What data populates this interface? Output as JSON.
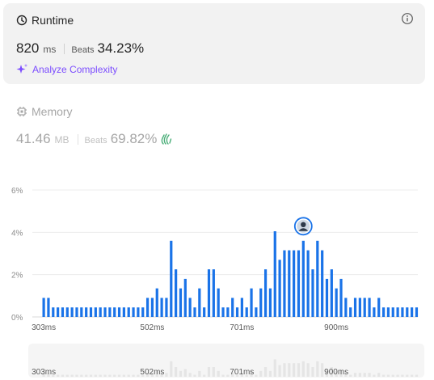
{
  "runtime": {
    "title": "Runtime",
    "value": "820",
    "unit": "ms",
    "beats_label": "Beats",
    "beats_value": "34.23%",
    "analyze_label": "Analyze Complexity"
  },
  "memory": {
    "title": "Memory",
    "value": "41.46",
    "unit": "MB",
    "beats_label": "Beats",
    "beats_value": "69.82%"
  },
  "icons": [
    "clock-icon",
    "info-icon",
    "sparkle-icon",
    "chip-icon",
    "clap-icon",
    "avatar"
  ],
  "colors": {
    "bar": "#1a73e8",
    "bar_dim": "#e5e5e5",
    "accent_purple": "#7c4dff",
    "clap_green": "#4caf7a"
  },
  "chart_data": {
    "type": "bar",
    "y_ticks": [
      "6%",
      "4%",
      "2%",
      "0%"
    ],
    "ylim": [
      0,
      6
    ],
    "x_ticks": [
      "303ms",
      "502ms",
      "701ms",
      "900ms"
    ],
    "x_tick_indices": [
      0,
      23,
      42,
      62
    ],
    "values": [
      0.9,
      0.9,
      0.45,
      0.45,
      0.45,
      0.45,
      0.45,
      0.45,
      0.45,
      0.45,
      0.45,
      0.45,
      0.45,
      0.45,
      0.45,
      0.45,
      0.45,
      0.45,
      0.45,
      0.45,
      0.45,
      0.45,
      0.9,
      0.9,
      1.35,
      0.9,
      0.9,
      3.6,
      2.25,
      1.35,
      1.8,
      0.9,
      0.45,
      1.35,
      0.45,
      2.25,
      2.25,
      1.35,
      0.45,
      0.45,
      0.9,
      0.45,
      0.9,
      0.45,
      1.35,
      0.45,
      1.35,
      2.25,
      1.35,
      4.05,
      2.7,
      3.15,
      3.15,
      3.15,
      3.15,
      3.6,
      3.15,
      2.25,
      3.6,
      3.15,
      1.8,
      2.25,
      1.35,
      1.8,
      0.9,
      0.45,
      0.9,
      0.9,
      0.9,
      0.9,
      0.45,
      0.9,
      0.45,
      0.45,
      0.45,
      0.45,
      0.45,
      0.45,
      0.45,
      0.45
    ],
    "highlight_index": 55,
    "mini_x_ticks": [
      "303ms",
      "502ms",
      "701ms",
      "900ms"
    ],
    "grid": true
  }
}
